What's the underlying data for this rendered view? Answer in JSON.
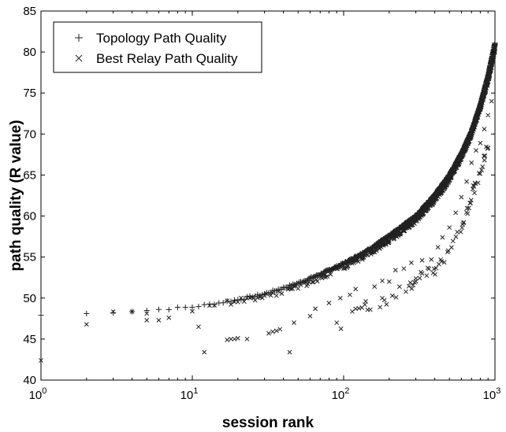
{
  "chart_data": {
    "type": "scatter",
    "xlabel": "session rank",
    "ylabel": "path quality (R value)",
    "xscale": "log",
    "xlim": [
      1,
      1000
    ],
    "ylim": [
      40,
      85
    ],
    "yticks": [
      "40",
      "45",
      "50",
      "55",
      "60",
      "65",
      "70",
      "75",
      "80",
      "85"
    ],
    "xticks": [
      {
        "base": "10",
        "exp": "0"
      },
      {
        "base": "10",
        "exp": "1"
      },
      {
        "base": "10",
        "exp": "2"
      },
      {
        "base": "10",
        "exp": "3"
      }
    ],
    "legend_position": "top-left",
    "grid": false,
    "series": [
      {
        "name": "Topology Path Quality",
        "marker": "plus",
        "curve": [
          [
            1,
            47.9
          ],
          [
            2,
            48.1
          ],
          [
            3,
            48.3
          ],
          [
            5,
            48.5
          ],
          [
            7,
            48.7
          ],
          [
            10,
            48.9
          ],
          [
            15,
            49.4
          ],
          [
            20,
            49.8
          ],
          [
            30,
            50.5
          ],
          [
            50,
            51.8
          ],
          [
            70,
            52.9
          ],
          [
            100,
            54.2
          ],
          [
            150,
            56.0
          ],
          [
            200,
            57.6
          ],
          [
            300,
            60.0
          ],
          [
            400,
            62.6
          ],
          [
            500,
            65.0
          ],
          [
            600,
            67.6
          ],
          [
            700,
            70.3
          ],
          [
            800,
            73.5
          ],
          [
            900,
            77.0
          ],
          [
            1000,
            81.0
          ]
        ]
      },
      {
        "name": "Best Relay Path Quality",
        "marker": "x",
        "curve": [
          [
            1,
            42.4
          ],
          [
            2,
            46.9
          ],
          [
            3,
            48.3
          ],
          [
            5,
            48.1
          ],
          [
            7,
            48.3
          ],
          [
            10,
            48.6
          ],
          [
            15,
            49.2
          ],
          [
            20,
            49.7
          ],
          [
            30,
            50.2
          ],
          [
            50,
            51.3
          ],
          [
            70,
            52.5
          ],
          [
            100,
            53.8
          ],
          [
            150,
            55.5
          ],
          [
            200,
            57.0
          ],
          [
            300,
            59.5
          ],
          [
            400,
            62.0
          ],
          [
            500,
            64.5
          ],
          [
            600,
            67.2
          ],
          [
            700,
            70.0
          ],
          [
            800,
            73.2
          ],
          [
            900,
            76.5
          ],
          [
            1000,
            80.3
          ]
        ],
        "outliers": [
          [
            5,
            47.3
          ],
          [
            6,
            47.3
          ],
          [
            7,
            47.6
          ],
          [
            11,
            46.5
          ],
          [
            12,
            43.4
          ],
          [
            17,
            44.9
          ],
          [
            18,
            45.0
          ],
          [
            19,
            45.0
          ],
          [
            20,
            45.1
          ],
          [
            23,
            45.0
          ],
          [
            32,
            45.7
          ],
          [
            34,
            45.9
          ],
          [
            36,
            46.0
          ],
          [
            38,
            46.2
          ],
          [
            44,
            43.4
          ],
          [
            47,
            47.0
          ],
          [
            60,
            47.8
          ],
          [
            65,
            48.7
          ],
          [
            80,
            49.4
          ],
          [
            95,
            50.0
          ],
          [
            110,
            50.4
          ],
          [
            120,
            51.1
          ],
          [
            140,
            49.6
          ],
          [
            160,
            51.4
          ],
          [
            180,
            52.1
          ],
          [
            200,
            52.0
          ],
          [
            220,
            53.4
          ],
          [
            250,
            53.6
          ],
          [
            280,
            54.3
          ],
          [
            300,
            52.4
          ],
          [
            330,
            54.6
          ],
          [
            380,
            54.7
          ],
          [
            420,
            56.2
          ],
          [
            450,
            57.4
          ],
          [
            500,
            58.6
          ],
          [
            550,
            60.4
          ],
          [
            600,
            62.3
          ],
          [
            650,
            64.2
          ],
          [
            700,
            66.5
          ],
          [
            750,
            68.0
          ],
          [
            800,
            68.9
          ],
          [
            850,
            70.6
          ],
          [
            900,
            72.3
          ],
          [
            950,
            74.0
          ]
        ],
        "low_band": [
          [
            90,
            46.5
          ],
          [
            110,
            47.5
          ],
          [
            130,
            48.5
          ],
          [
            150,
            48.6
          ],
          [
            180,
            49.5
          ],
          [
            210,
            50.5
          ],
          [
            250,
            51.2
          ],
          [
            300,
            52.0
          ],
          [
            350,
            53.0
          ],
          [
            400,
            53.5
          ],
          [
            450,
            54.6
          ],
          [
            500,
            55.5
          ],
          [
            550,
            57.0
          ],
          [
            600,
            58.5
          ],
          [
            650,
            60.5
          ],
          [
            700,
            62.5
          ],
          [
            750,
            64.0
          ],
          [
            800,
            65.5
          ],
          [
            850,
            67.0
          ],
          [
            900,
            69.0
          ]
        ]
      }
    ]
  }
}
